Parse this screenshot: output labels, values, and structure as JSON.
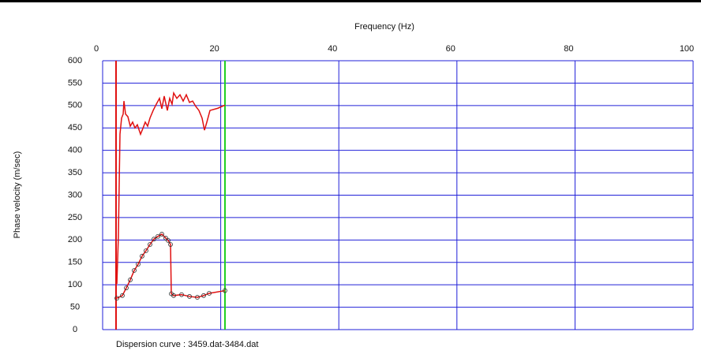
{
  "chart_data": {
    "type": "line",
    "xlabel": "Frequency (Hz)",
    "ylabel": "Phase velocity (m/sec)",
    "caption": "Dispersion curve : 3459.dat-3484.dat",
    "xlim": [
      0,
      100
    ],
    "xticks": [
      0,
      20,
      40,
      60,
      80,
      100
    ],
    "ylim": [
      0,
      600
    ],
    "yticks": [
      0,
      50,
      100,
      150,
      200,
      250,
      300,
      350,
      400,
      450,
      500,
      550,
      600
    ],
    "grid": true,
    "grid_color": "#2020d8",
    "series": [
      {
        "color": "#e01010",
        "markers": false,
        "x": [
          2.41,
          2.67,
          2.94,
          3.21,
          3.48,
          3.61,
          3.88,
          4.28,
          4.68,
          5.08,
          5.48,
          5.88,
          6.42,
          6.82,
          7.22,
          7.62,
          8.02,
          8.56,
          9.09,
          9.63,
          10.03,
          10.43,
          10.96,
          11.36,
          11.76,
          12.03,
          12.57,
          13.1,
          13.64,
          14.17,
          14.71,
          15.24,
          15.78,
          16.31,
          16.84,
          17.25,
          17.65,
          18.18,
          19.52,
          20.72
        ],
        "values": [
          102,
          208,
          436,
          472,
          481,
          510,
          481,
          475,
          454,
          463,
          450,
          457,
          436,
          449,
          463,
          454,
          472,
          489,
          503,
          516,
          493,
          521,
          489,
          516,
          503,
          528,
          516,
          524,
          510,
          524,
          507,
          510,
          498,
          489,
          472,
          445,
          463,
          489,
          494,
          501
        ]
      },
      {
        "color": "#e01010",
        "markers": true,
        "x": [
          2.41,
          3.34,
          4.01,
          4.68,
          5.35,
          6.02,
          6.68,
          7.35,
          8.02,
          8.69,
          9.36,
          10.03,
          10.7,
          11.1,
          11.5,
          11.63,
          12.03,
          13.37,
          14.71,
          16.04,
          17.11,
          18.05,
          20.72
        ],
        "values": [
          70,
          76,
          93,
          111,
          132,
          146,
          164,
          176,
          190,
          202,
          208,
          213,
          204,
          199,
          190,
          80,
          76,
          78,
          74,
          72,
          76,
          81,
          87
        ]
      }
    ],
    "vlines": [
      {
        "x": 2.27,
        "color": "#e01010"
      },
      {
        "x": 20.72,
        "color": "#20d020"
      }
    ]
  }
}
